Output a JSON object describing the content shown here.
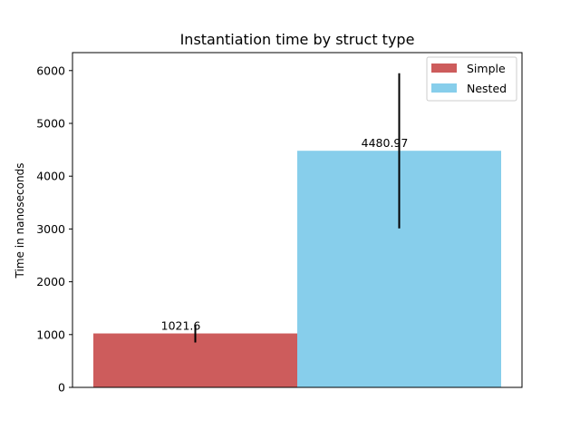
{
  "chart_data": {
    "type": "bar",
    "title": "Instantiation time by struct type",
    "xlabel": "",
    "ylabel": "Time in nanoseconds",
    "ylim": [
      0,
      6340
    ],
    "yticks": [
      0,
      1000,
      2000,
      3000,
      4000,
      5000,
      6000
    ],
    "grid": false,
    "legend_position": "top-right",
    "series": [
      {
        "name": "Simple",
        "value": 1021.6,
        "value_label": "1021.6",
        "error_range": [
          850,
          1190
        ],
        "color": "#cd5c5c"
      },
      {
        "name": "Nested",
        "value": 4480.97,
        "value_label": "4480.97",
        "error_range": [
          3010,
          5950
        ],
        "color": "#87ceeb"
      }
    ]
  }
}
